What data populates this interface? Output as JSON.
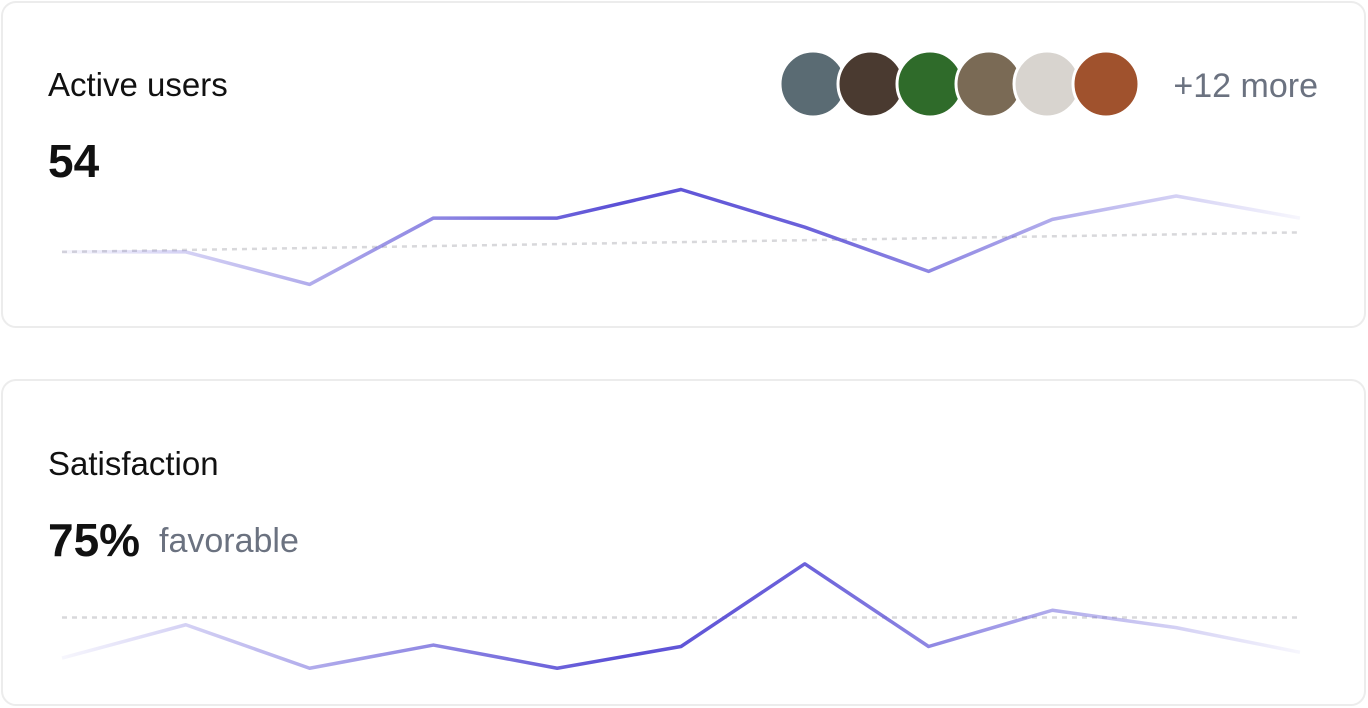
{
  "chart_data": [
    {
      "type": "line",
      "title": "Active users",
      "headline": "54",
      "more": "+12 more",
      "values": [
        37,
        37,
        12,
        63,
        63,
        85,
        56,
        22,
        62,
        80,
        63
      ],
      "trend": [
        37,
        52
      ],
      "ylim": [
        0,
        100
      ],
      "color": "#5b50d6"
    },
    {
      "type": "line",
      "title": "Satisfaction",
      "headline": "75%",
      "subtitle": "favorable",
      "values": [
        22,
        45,
        15,
        31,
        15,
        30,
        87,
        30,
        55,
        43,
        26
      ],
      "trend": [
        50,
        50
      ],
      "ylim": [
        0,
        100
      ],
      "color": "#5b50d6"
    }
  ]
}
